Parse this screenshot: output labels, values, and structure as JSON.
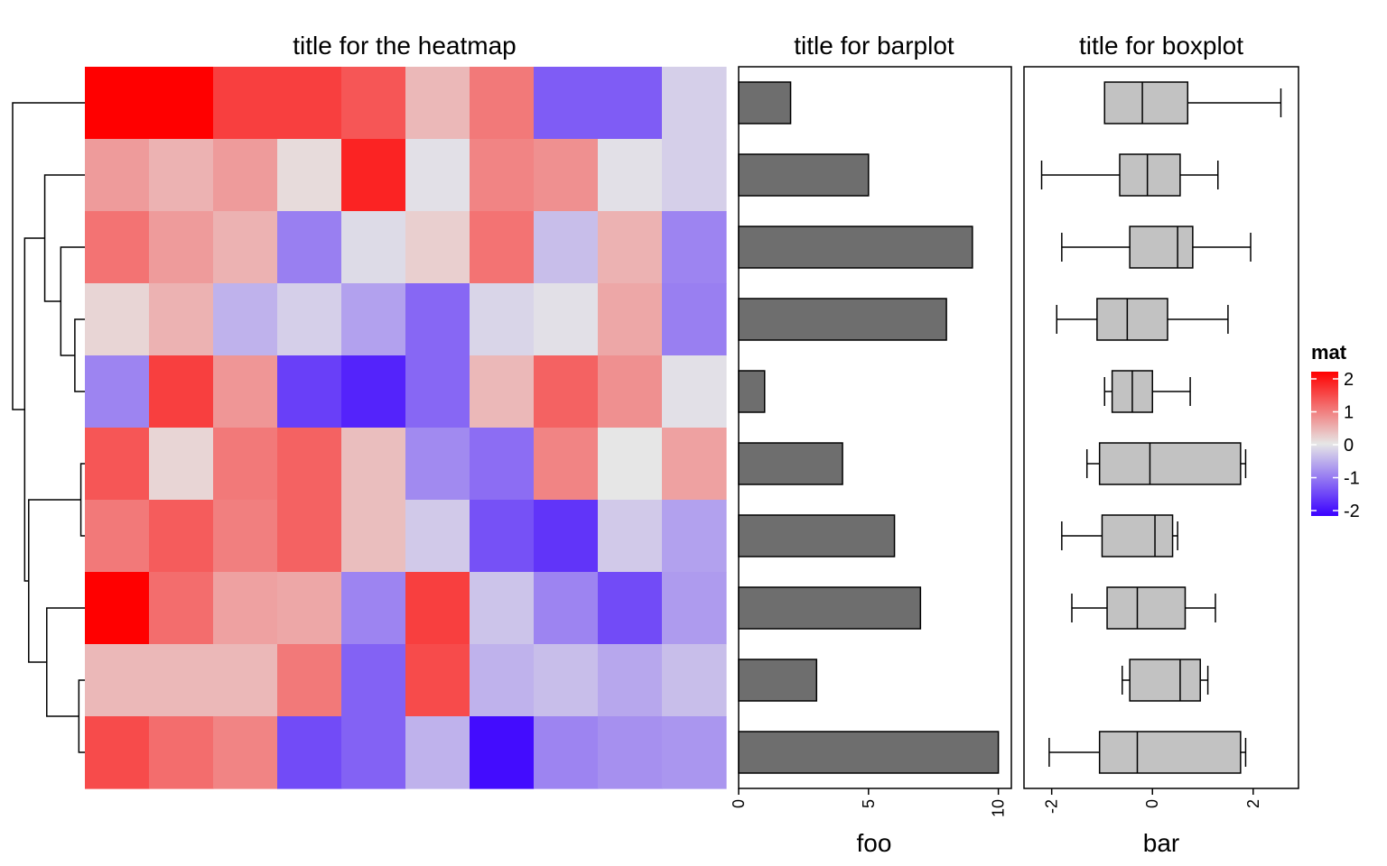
{
  "chart_data": [
    {
      "type": "heatmap",
      "title": "title for the heatmap",
      "rows": 10,
      "cols": 10,
      "values": [
        [
          2.2,
          2.2,
          1.45,
          1.45,
          1.25,
          0.4,
          0.95,
          -1.2,
          -1.2,
          -0.2
        ],
        [
          0.65,
          0.45,
          0.65,
          0.1,
          1.7,
          -0.05,
          0.85,
          0.75,
          -0.05,
          -0.2
        ],
        [
          1.0,
          0.65,
          0.45,
          -0.9,
          -0.1,
          0.2,
          1.0,
          -0.35,
          0.45,
          -0.85
        ],
        [
          0.15,
          0.45,
          -0.45,
          -0.2,
          -0.6,
          -1.1,
          -0.15,
          -0.05,
          0.55,
          -0.9
        ],
        [
          -0.85,
          1.45,
          0.7,
          -1.45,
          -1.7,
          -1.1,
          0.4,
          1.15,
          0.75,
          -0.05
        ],
        [
          1.25,
          0.15,
          0.95,
          1.15,
          0.35,
          -0.8,
          -1.05,
          0.85,
          0.0,
          0.6
        ],
        [
          0.95,
          1.2,
          0.9,
          1.15,
          0.35,
          -0.25,
          -1.3,
          -1.55,
          -0.25,
          -0.6
        ],
        [
          2.1,
          1.05,
          0.6,
          0.55,
          -0.85,
          1.45,
          -0.3,
          -0.85,
          -1.35,
          -0.65
        ],
        [
          0.4,
          0.4,
          0.4,
          0.95,
          -1.15,
          1.35,
          -0.45,
          -0.35,
          -0.55,
          -0.35
        ],
        [
          1.35,
          1.05,
          0.85,
          -1.35,
          -1.15,
          -0.45,
          -1.9,
          -0.85,
          -0.75,
          -0.7
        ]
      ],
      "dendrogram": {
        "merges": [
          [
            3,
            4,
            1.55
          ],
          [
            5,
            6,
            1.7
          ],
          [
            8,
            9,
            1.65
          ],
          [
            2,
            10,
            1.2
          ],
          [
            7,
            12,
            0.85
          ],
          [
            1,
            13,
            0.8
          ],
          [
            11,
            14,
            0.4
          ],
          [
            15,
            16,
            0.3
          ],
          [
            0,
            17,
            0.0
          ]
        ]
      },
      "legend": {
        "title": "mat",
        "ticks": [
          2,
          1,
          0,
          -1,
          -2
        ],
        "colors": {
          "high": "#ff0000",
          "mid": "#e6e6e6",
          "low": "#3a00ff"
        }
      }
    },
    {
      "type": "bar",
      "title": "title for barplot",
      "xlabel": "foo",
      "orientation": "horizontal",
      "values": [
        2,
        5,
        9,
        8,
        1,
        4,
        6,
        7,
        3,
        10
      ],
      "xlim": [
        0,
        10.5
      ],
      "ticks": [
        0,
        5,
        10
      ],
      "bar_color": "#6e6e6e"
    },
    {
      "type": "box",
      "title": "title for boxplot",
      "xlabel": "bar",
      "xlim": [
        -2.55,
        2.9
      ],
      "ticks": [
        -2,
        0,
        2
      ],
      "box_color": "#c2c2c2",
      "boxes": [
        {
          "min": -0.95,
          "q1": -0.95,
          "median": -0.2,
          "q3": 0.7,
          "max": 2.55
        },
        {
          "min": -2.2,
          "q1": -0.65,
          "median": -0.1,
          "q3": 0.55,
          "max": 1.3
        },
        {
          "min": -1.8,
          "q1": -0.45,
          "median": 0.5,
          "q3": 0.8,
          "max": 1.95
        },
        {
          "min": -1.9,
          "q1": -1.1,
          "median": -0.5,
          "q3": 0.3,
          "max": 1.5
        },
        {
          "min": -0.95,
          "q1": -0.8,
          "median": -0.4,
          "q3": 0.0,
          "max": 0.75
        },
        {
          "min": -1.3,
          "q1": -1.05,
          "median": -0.05,
          "q3": 1.75,
          "max": 1.85
        },
        {
          "min": -1.8,
          "q1": -1.0,
          "median": 0.05,
          "q3": 0.4,
          "max": 0.5
        },
        {
          "min": -1.6,
          "q1": -0.9,
          "median": -0.3,
          "q3": 0.65,
          "max": 1.25
        },
        {
          "min": -0.6,
          "q1": -0.45,
          "median": 0.55,
          "q3": 0.95,
          "max": 1.1
        },
        {
          "min": -2.05,
          "q1": -1.05,
          "median": -0.3,
          "q3": 1.75,
          "max": 1.85
        }
      ]
    }
  ]
}
